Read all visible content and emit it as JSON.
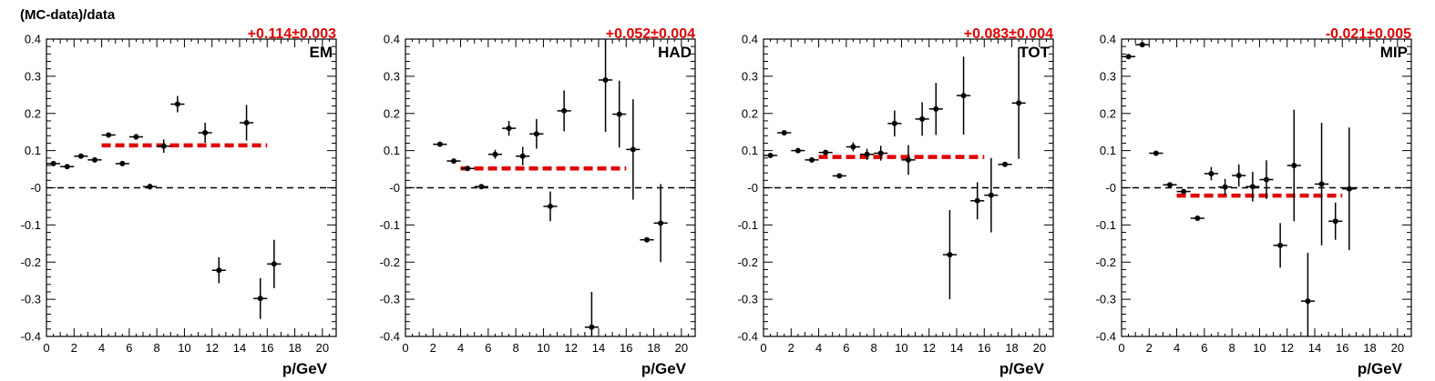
{
  "figure": {
    "ylabel": "(MC-data)/data"
  },
  "chart_data": [
    {
      "type": "scatter",
      "name": "EM",
      "fit_label": "+0.114±0.003",
      "fit_value": 0.114,
      "fit_range": [
        4,
        16
      ],
      "xlabel": "p/GeV",
      "ylabel": "(MC-data)/data",
      "xlim": [
        0,
        21
      ],
      "ylim": [
        -0.4,
        0.4
      ],
      "xticks": [
        "0",
        "2",
        "4",
        "6",
        "8",
        "10",
        "12",
        "14",
        "16",
        "18",
        "20"
      ],
      "yticks": [
        "-0.4",
        "-0.3",
        "-0.2",
        "-0.1",
        "-0",
        "0.1",
        "0.2",
        "0.3",
        "0.4"
      ],
      "reference_line": 0,
      "points": [
        {
          "x": 0.5,
          "y": 0.065,
          "ex": 0.5,
          "ey": 0.006
        },
        {
          "x": 1.5,
          "y": 0.057,
          "ex": 0.5,
          "ey": 0.006
        },
        {
          "x": 2.5,
          "y": 0.085,
          "ex": 0.5,
          "ey": 0.006
        },
        {
          "x": 3.5,
          "y": 0.075,
          "ex": 0.5,
          "ey": 0.006
        },
        {
          "x": 4.5,
          "y": 0.142,
          "ex": 0.5,
          "ey": 0.007
        },
        {
          "x": 5.5,
          "y": 0.065,
          "ex": 0.5,
          "ey": 0.007
        },
        {
          "x": 6.5,
          "y": 0.137,
          "ex": 0.5,
          "ey": 0.008
        },
        {
          "x": 7.5,
          "y": 0.003,
          "ex": 0.5,
          "ey": 0.008
        },
        {
          "x": 8.5,
          "y": 0.112,
          "ex": 0.5,
          "ey": 0.018
        },
        {
          "x": 9.5,
          "y": 0.225,
          "ex": 0.5,
          "ey": 0.022
        },
        {
          "x": 11.5,
          "y": 0.148,
          "ex": 0.5,
          "ey": 0.027
        },
        {
          "x": 12.5,
          "y": -0.222,
          "ex": 0.5,
          "ey": 0.035
        },
        {
          "x": 14.5,
          "y": 0.175,
          "ex": 0.5,
          "ey": 0.048
        },
        {
          "x": 15.5,
          "y": -0.298,
          "ex": 0.5,
          "ey": 0.055
        },
        {
          "x": 16.5,
          "y": -0.205,
          "ex": 0.5,
          "ey": 0.065
        }
      ]
    },
    {
      "type": "scatter",
      "name": "HAD",
      "fit_label": "+0.052±0.004",
      "fit_value": 0.052,
      "fit_range": [
        4,
        16
      ],
      "xlabel": "p/GeV",
      "xlim": [
        0,
        21
      ],
      "ylim": [
        -0.4,
        0.4
      ],
      "xticks": [
        "0",
        "2",
        "4",
        "6",
        "8",
        "10",
        "12",
        "14",
        "16",
        "18",
        "20"
      ],
      "yticks": [
        "-0.4",
        "-0.3",
        "-0.2",
        "-0.1",
        "-0",
        "0.1",
        "0.2",
        "0.3",
        "0.4"
      ],
      "reference_line": 0,
      "points": [
        {
          "x": 2.5,
          "y": 0.117,
          "ex": 0.5,
          "ey": 0.006
        },
        {
          "x": 3.5,
          "y": 0.072,
          "ex": 0.5,
          "ey": 0.006
        },
        {
          "x": 4.5,
          "y": 0.052,
          "ex": 0.5,
          "ey": 0.006
        },
        {
          "x": 5.5,
          "y": 0.003,
          "ex": 0.5,
          "ey": 0.006
        },
        {
          "x": 6.5,
          "y": 0.09,
          "ex": 0.5,
          "ey": 0.012
        },
        {
          "x": 7.5,
          "y": 0.16,
          "ex": 0.5,
          "ey": 0.02
        },
        {
          "x": 8.5,
          "y": 0.085,
          "ex": 0.5,
          "ey": 0.025
        },
        {
          "x": 9.5,
          "y": 0.145,
          "ex": 0.5,
          "ey": 0.04
        },
        {
          "x": 10.5,
          "y": -0.05,
          "ex": 0.5,
          "ey": 0.04
        },
        {
          "x": 11.5,
          "y": 0.207,
          "ex": 0.5,
          "ey": 0.055
        },
        {
          "x": 13.5,
          "y": -0.375,
          "ex": 0.5,
          "ey": 0.095
        },
        {
          "x": 14.5,
          "y": 0.29,
          "ex": 0.5,
          "ey": 0.14
        },
        {
          "x": 15.5,
          "y": 0.198,
          "ex": 0.5,
          "ey": 0.09
        },
        {
          "x": 16.5,
          "y": 0.103,
          "ex": 0.5,
          "ey": 0.135
        },
        {
          "x": 17.5,
          "y": -0.14,
          "ex": 0.5,
          "ey": 0.005
        },
        {
          "x": 18.5,
          "y": -0.095,
          "ex": 0.5,
          "ey": 0.105
        }
      ]
    },
    {
      "type": "scatter",
      "name": "TOT",
      "fit_label": "+0.083±0.004",
      "fit_value": 0.083,
      "fit_range": [
        4,
        16
      ],
      "xlabel": "p/GeV",
      "xlim": [
        0,
        21
      ],
      "ylim": [
        -0.4,
        0.4
      ],
      "xticks": [
        "0",
        "2",
        "4",
        "6",
        "8",
        "10",
        "12",
        "14",
        "16",
        "18",
        "20"
      ],
      "yticks": [
        "-0.4",
        "-0.3",
        "-0.2",
        "-0.1",
        "-0",
        "0.1",
        "0.2",
        "0.3",
        "0.4"
      ],
      "reference_line": 0,
      "points": [
        {
          "x": 0.5,
          "y": 0.087,
          "ex": 0.5,
          "ey": 0.006
        },
        {
          "x": 1.5,
          "y": 0.148,
          "ex": 0.5,
          "ey": 0.006
        },
        {
          "x": 2.5,
          "y": 0.1,
          "ex": 0.5,
          "ey": 0.006
        },
        {
          "x": 3.5,
          "y": 0.075,
          "ex": 0.5,
          "ey": 0.006
        },
        {
          "x": 4.5,
          "y": 0.095,
          "ex": 0.5,
          "ey": 0.006
        },
        {
          "x": 5.5,
          "y": 0.032,
          "ex": 0.5,
          "ey": 0.006
        },
        {
          "x": 6.5,
          "y": 0.11,
          "ex": 0.5,
          "ey": 0.012
        },
        {
          "x": 7.5,
          "y": 0.09,
          "ex": 0.5,
          "ey": 0.015
        },
        {
          "x": 8.5,
          "y": 0.093,
          "ex": 0.5,
          "ey": 0.02
        },
        {
          "x": 9.5,
          "y": 0.173,
          "ex": 0.5,
          "ey": 0.035
        },
        {
          "x": 10.5,
          "y": 0.075,
          "ex": 0.5,
          "ey": 0.04
        },
        {
          "x": 11.5,
          "y": 0.185,
          "ex": 0.5,
          "ey": 0.045
        },
        {
          "x": 12.5,
          "y": 0.212,
          "ex": 0.5,
          "ey": 0.07
        },
        {
          "x": 13.5,
          "y": -0.18,
          "ex": 0.5,
          "ey": 0.12
        },
        {
          "x": 14.5,
          "y": 0.248,
          "ex": 0.5,
          "ey": 0.105
        },
        {
          "x": 15.5,
          "y": -0.035,
          "ex": 0.5,
          "ey": 0.05
        },
        {
          "x": 16.5,
          "y": -0.02,
          "ex": 0.5,
          "ey": 0.1
        },
        {
          "x": 17.5,
          "y": 0.063,
          "ex": 0.5,
          "ey": 0.005
        },
        {
          "x": 18.5,
          "y": 0.228,
          "ex": 0.5,
          "ey": 0.15
        }
      ]
    },
    {
      "type": "scatter",
      "name": "MIP",
      "fit_label": "-0.021±0.005",
      "fit_value": -0.021,
      "fit_range": [
        4,
        16
      ],
      "xlabel": "p/GeV",
      "xlim": [
        0,
        21
      ],
      "ylim": [
        -0.4,
        0.4
      ],
      "xticks": [
        "0",
        "2",
        "4",
        "6",
        "8",
        "10",
        "12",
        "14",
        "16",
        "18",
        "20"
      ],
      "yticks": [
        "-0.4",
        "-0.3",
        "-0.2",
        "-0.1",
        "-0",
        "0.1",
        "0.2",
        "0.3",
        "0.4"
      ],
      "reference_line": 0,
      "points": [
        {
          "x": 0.5,
          "y": 0.353,
          "ex": 0.5,
          "ey": 0.005
        },
        {
          "x": 1.5,
          "y": 0.385,
          "ex": 0.5,
          "ey": 0.005
        },
        {
          "x": 2.5,
          "y": 0.093,
          "ex": 0.5,
          "ey": 0.006
        },
        {
          "x": 3.5,
          "y": 0.008,
          "ex": 0.5,
          "ey": 0.006
        },
        {
          "x": 4.5,
          "y": -0.01,
          "ex": 0.5,
          "ey": 0.006
        },
        {
          "x": 5.5,
          "y": -0.082,
          "ex": 0.5,
          "ey": 0.006
        },
        {
          "x": 6.5,
          "y": 0.038,
          "ex": 0.5,
          "ey": 0.018
        },
        {
          "x": 7.5,
          "y": 0.002,
          "ex": 0.5,
          "ey": 0.022
        },
        {
          "x": 8.5,
          "y": 0.033,
          "ex": 0.5,
          "ey": 0.03
        },
        {
          "x": 9.5,
          "y": 0.003,
          "ex": 0.5,
          "ey": 0.04
        },
        {
          "x": 10.5,
          "y": 0.022,
          "ex": 0.5,
          "ey": 0.052
        },
        {
          "x": 11.5,
          "y": -0.155,
          "ex": 0.5,
          "ey": 0.06
        },
        {
          "x": 12.5,
          "y": 0.06,
          "ex": 0.5,
          "ey": 0.15
        },
        {
          "x": 13.5,
          "y": -0.305,
          "ex": 0.5,
          "ey": 0.13
        },
        {
          "x": 14.5,
          "y": 0.01,
          "ex": 0.5,
          "ey": 0.165
        },
        {
          "x": 15.5,
          "y": -0.09,
          "ex": 0.5,
          "ey": 0.05
        },
        {
          "x": 16.5,
          "y": -0.003,
          "ex": 0.5,
          "ey": 0.165
        }
      ]
    }
  ],
  "colors": {
    "fit": "#e00000",
    "points": "#000000",
    "reference": "#000000"
  }
}
